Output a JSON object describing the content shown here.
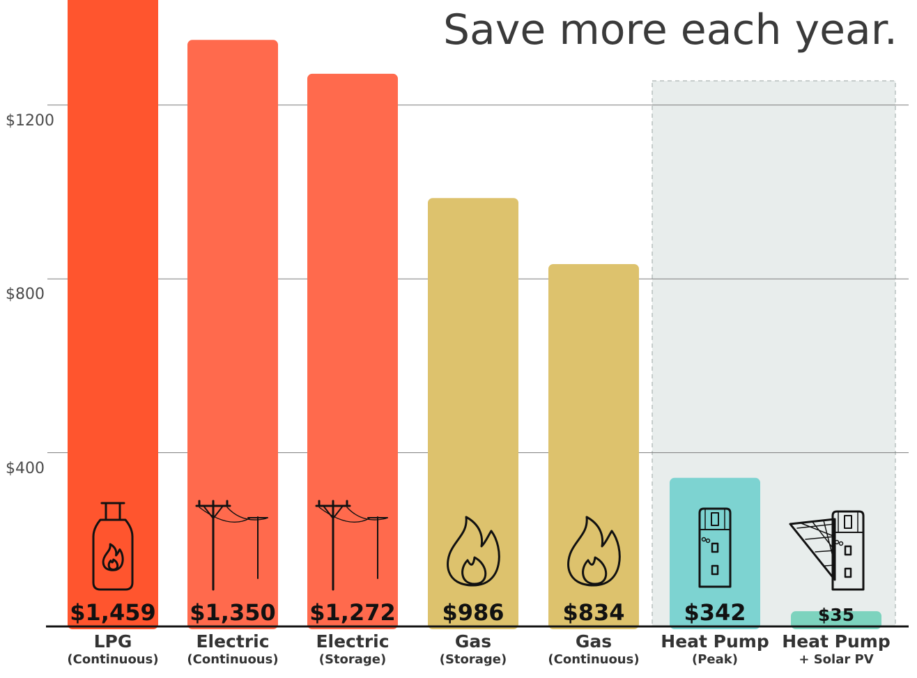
{
  "title": "Save more each year.",
  "chart_data": {
    "type": "bar",
    "title": "Save more each year.",
    "categories": [
      {
        "main": "LPG",
        "sub": "(Continuous)"
      },
      {
        "main": "Electric",
        "sub": "(Continuous)"
      },
      {
        "main": "Electric",
        "sub": "(Storage)"
      },
      {
        "main": "Gas",
        "sub": "(Storage)"
      },
      {
        "main": "Gas",
        "sub": "(Continuous)"
      },
      {
        "main": "Heat Pump",
        "sub": "(Peak)"
      },
      {
        "main": "Heat Pump",
        "sub": "+ Solar PV"
      }
    ],
    "values": [
      1459,
      1350,
      1272,
      986,
      834,
      342,
      35
    ],
    "value_labels": [
      "$1,459",
      "$1,350",
      "$1,272",
      "$986",
      "$834",
      "$342",
      "$35"
    ],
    "colors": [
      "#FF552E",
      "#FF6A4D",
      "#FF6A4D",
      "#DDC26D",
      "#DDC26D",
      "#7DD3D1",
      "#7DD3BE"
    ],
    "icons": [
      "lpg-bottle-icon",
      "power-pole-icon",
      "power-pole-icon",
      "flame-icon",
      "flame-icon",
      "heat-pump-icon",
      "heat-pump-solar-icon"
    ],
    "ylim": [
      0,
      1400
    ],
    "yticks": [
      400,
      800,
      1200
    ],
    "ytick_labels": [
      "$400",
      "$800",
      "$1200"
    ],
    "grid": true,
    "highlight_group": {
      "categories": [
        5,
        6
      ],
      "color": "#E8EDEC"
    }
  }
}
